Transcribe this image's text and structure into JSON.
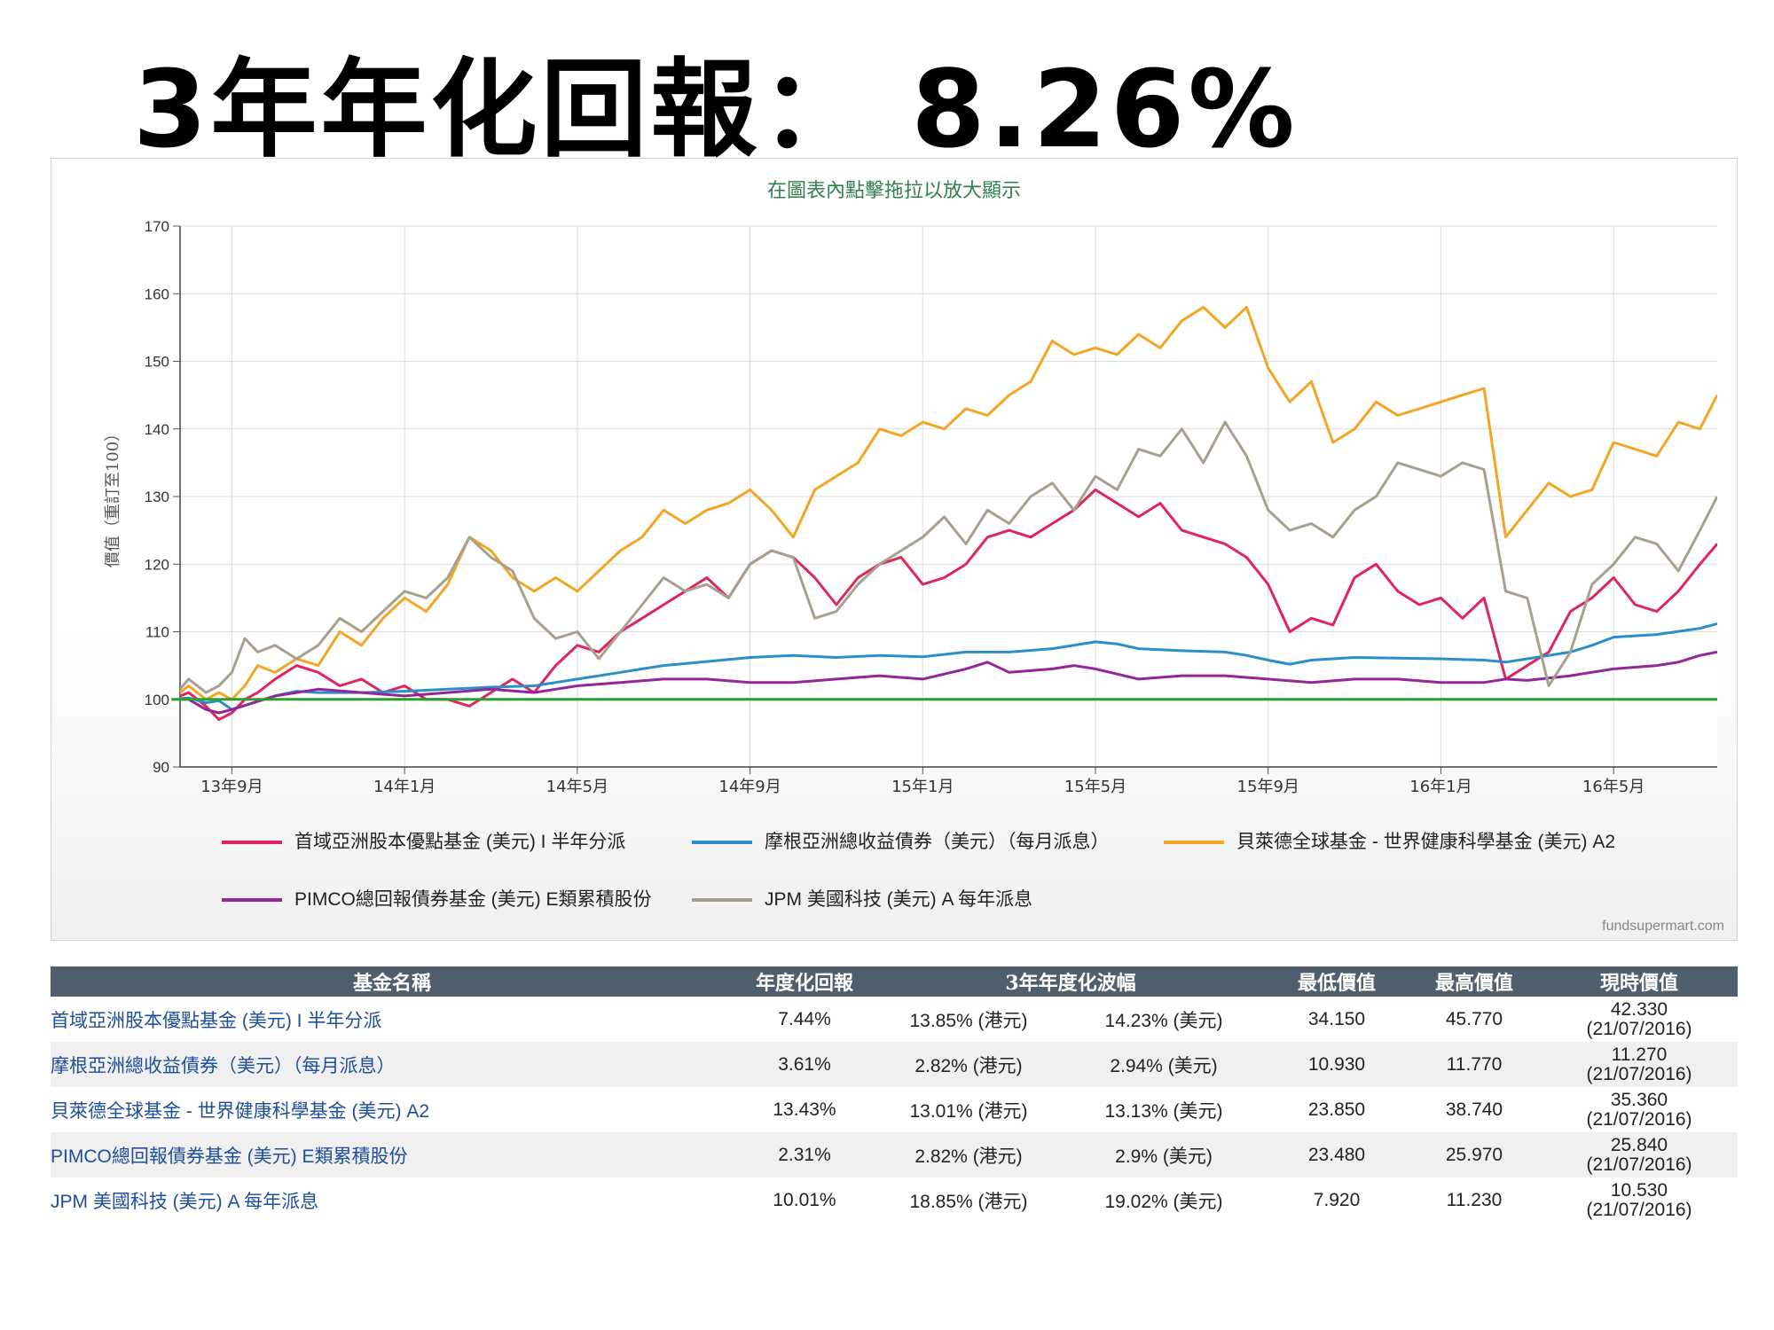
{
  "headline": "3年年化回報： 8.26%",
  "chart_hint": "在圖表內點擊拖拉以放大顯示",
  "credit": "fundsupermart.com",
  "watermark": "fundsupermart.com",
  "chart_data": {
    "type": "line",
    "ylabel": "價值（重訂至100）",
    "ylim": [
      90,
      170
    ],
    "yticks": [
      90,
      100,
      110,
      120,
      130,
      140,
      150,
      160,
      170
    ],
    "xlim": [
      -1.2,
      34.4
    ],
    "xticks": [
      {
        "label": "13年9月",
        "x": 0
      },
      {
        "label": "14年1月",
        "x": 4
      },
      {
        "label": "14年5月",
        "x": 8
      },
      {
        "label": "14年9月",
        "x": 12
      },
      {
        "label": "15年1月",
        "x": 16
      },
      {
        "label": "15年5月",
        "x": 20
      },
      {
        "label": "15年9月",
        "x": 24
      },
      {
        "label": "16年1月",
        "x": 28
      },
      {
        "label": "16年5月",
        "x": 32
      }
    ],
    "grid": true,
    "legend_position": "bottom",
    "baseline": {
      "value": 100,
      "color": "#2ca02c"
    },
    "series": [
      {
        "name": "首域亞洲股本優點基金 (美元) I 半年分派",
        "color": "#e0245e",
        "x": [
          -1.4,
          -1,
          -0.6,
          -0.3,
          0,
          0.3,
          0.6,
          1,
          1.5,
          2,
          2.5,
          3,
          3.5,
          4,
          4.5,
          5,
          5.5,
          6,
          6.5,
          7,
          7.5,
          8,
          8.5,
          9,
          9.5,
          10,
          10.5,
          11,
          11.5,
          12,
          12.5,
          13,
          13.5,
          14,
          14.5,
          15,
          15.5,
          16,
          16.5,
          17,
          17.5,
          18,
          18.5,
          19,
          19.5,
          20,
          20.5,
          21,
          21.5,
          22,
          22.5,
          23,
          23.5,
          24,
          24.5,
          25,
          25.5,
          26,
          26.5,
          27,
          27.5,
          28,
          28.5,
          29,
          29.5,
          30,
          30.5,
          31,
          31.5,
          32,
          32.5,
          33,
          33.5,
          34,
          34.4
        ],
        "y": [
          100,
          101,
          99,
          97,
          98,
          100,
          101,
          103,
          105,
          104,
          102,
          103,
          101,
          102,
          100,
          100,
          99,
          101,
          103,
          101,
          105,
          108,
          107,
          110,
          112,
          114,
          116,
          118,
          115,
          120,
          122,
          121,
          118,
          114,
          118,
          120,
          121,
          117,
          118,
          120,
          124,
          125,
          124,
          126,
          128,
          131,
          129,
          127,
          129,
          125,
          124,
          123,
          121,
          117,
          110,
          112,
          111,
          118,
          120,
          116,
          114,
          115,
          112,
          115,
          103,
          105,
          107,
          113,
          115,
          118,
          114,
          113,
          116,
          120,
          123
        ]
      },
      {
        "name": "摩根亞洲總收益債券（美元）（每月派息）",
        "color": "#2a8fc9",
        "x": [
          -1.4,
          -1,
          -0.6,
          -0.3,
          0,
          0.5,
          1,
          1.5,
          2,
          3,
          4,
          5,
          6,
          7,
          7.5,
          8,
          8.5,
          9,
          9.5,
          10,
          11,
          12,
          13,
          14,
          15,
          16,
          17,
          18,
          19,
          20,
          20.5,
          21,
          22,
          23,
          23.5,
          24,
          24.5,
          25,
          26,
          27,
          28,
          29,
          29.5,
          30,
          30.5,
          31,
          31.5,
          32,
          33,
          34,
          34.4
        ],
        "y": [
          100,
          100.2,
          99.5,
          99.8,
          98.5,
          99.5,
          100.5,
          101.2,
          101,
          101,
          101.2,
          101.5,
          101.8,
          102,
          102.5,
          103,
          103.5,
          104,
          104.5,
          105,
          105.6,
          106.2,
          106.5,
          106.2,
          106.5,
          106.3,
          107,
          107,
          107.5,
          108.5,
          108.2,
          107.5,
          107.2,
          107,
          106.5,
          105.8,
          105.2,
          105.8,
          106.2,
          106.1,
          106,
          105.8,
          105.5,
          106,
          106.5,
          107,
          108,
          109.2,
          109.6,
          110.5,
          111.2
        ]
      },
      {
        "name": "貝萊德全球基金 - 世界健康科學基金 (美元) A2",
        "color": "#f3a623",
        "x": [
          -1.4,
          -1,
          -0.6,
          -0.3,
          0,
          0.3,
          0.6,
          1,
          1.5,
          2,
          2.5,
          3,
          3.5,
          4,
          4.5,
          5,
          5.5,
          6,
          6.5,
          7,
          7.5,
          8,
          8.5,
          9,
          9.5,
          10,
          10.5,
          11,
          11.5,
          12,
          12.5,
          13,
          13.5,
          14,
          14.5,
          15,
          15.5,
          16,
          16.5,
          17,
          17.5,
          18,
          18.5,
          19,
          19.5,
          20,
          20.5,
          21,
          21.5,
          22,
          22.5,
          23,
          23.5,
          24,
          24.5,
          25,
          25.5,
          26,
          26.5,
          27,
          27.5,
          28,
          28.5,
          29,
          29.5,
          30,
          30.5,
          31,
          31.5,
          32,
          32.5,
          33,
          33.5,
          34,
          34.4
        ],
        "y": [
          100,
          102,
          100,
          101,
          100,
          102,
          105,
          104,
          106,
          105,
          110,
          108,
          112,
          115,
          113,
          117,
          124,
          122,
          118,
          116,
          118,
          116,
          119,
          122,
          124,
          128,
          126,
          128,
          129,
          131,
          128,
          124,
          131,
          133,
          135,
          140,
          139,
          141,
          140,
          143,
          142,
          145,
          147,
          153,
          151,
          152,
          151,
          154,
          152,
          156,
          158,
          155,
          158,
          149,
          144,
          147,
          138,
          140,
          144,
          142,
          143,
          144,
          145,
          146,
          124,
          128,
          132,
          130,
          131,
          138,
          137,
          136,
          141,
          140,
          145
        ]
      },
      {
        "name": "PIMCO總回報債券基金 (美元) E類累積股份",
        "color": "#93269a",
        "x": [
          -1.4,
          -1,
          -0.6,
          -0.3,
          0,
          0.5,
          1,
          1.5,
          2,
          3,
          4,
          5,
          6,
          7,
          7.5,
          8,
          9,
          10,
          11,
          12,
          13,
          14,
          15,
          16,
          17,
          17.5,
          18,
          19,
          19.5,
          20,
          21,
          22,
          23,
          24,
          25,
          26,
          27,
          28,
          29,
          29.5,
          30,
          31,
          32,
          33,
          33.5,
          34,
          34.4
        ],
        "y": [
          100,
          100,
          98.5,
          98,
          98.5,
          99.5,
          100.5,
          101,
          101.5,
          101,
          100.5,
          101,
          101.5,
          101,
          101.5,
          102,
          102.5,
          103,
          103,
          102.5,
          102.5,
          103,
          103.5,
          103,
          104.5,
          105.5,
          104,
          104.5,
          105,
          104.5,
          103,
          103.5,
          103.5,
          103,
          102.5,
          103,
          103,
          102.5,
          102.5,
          103,
          102.8,
          103.5,
          104.5,
          105,
          105.5,
          106.5,
          107
        ]
      },
      {
        "name": "JPM 美國科技 (美元) A 每年派息",
        "color": "#a8a08f",
        "x": [
          -1.4,
          -1,
          -0.6,
          -0.3,
          0,
          0.3,
          0.6,
          1,
          1.5,
          2,
          2.5,
          3,
          3.5,
          4,
          4.5,
          5,
          5.5,
          6,
          6.5,
          7,
          7.5,
          8,
          8.5,
          9,
          9.5,
          10,
          10.5,
          11,
          11.5,
          12,
          12.5,
          13,
          13.5,
          14,
          14.5,
          15,
          15.5,
          16,
          16.5,
          17,
          17.5,
          18,
          18.5,
          19,
          19.5,
          20,
          20.5,
          21,
          21.5,
          22,
          22.5,
          23,
          23.5,
          24,
          24.5,
          25,
          25.5,
          26,
          26.5,
          27,
          27.5,
          28,
          28.5,
          29,
          29.5,
          30,
          30.5,
          31,
          31.5,
          32,
          32.5,
          33,
          33.5,
          34,
          34.4
        ],
        "y": [
          100,
          103,
          101,
          102,
          104,
          109,
          107,
          108,
          106,
          108,
          112,
          110,
          113,
          116,
          115,
          118,
          124,
          121,
          119,
          112,
          109,
          110,
          106,
          110,
          114,
          118,
          116,
          117,
          115,
          120,
          122,
          121,
          112,
          113,
          117,
          120,
          122,
          124,
          127,
          123,
          128,
          126,
          130,
          132,
          128,
          133,
          131,
          137,
          136,
          140,
          135,
          141,
          136,
          128,
          125,
          126,
          124,
          128,
          130,
          135,
          134,
          133,
          135,
          134,
          116,
          115,
          102,
          107,
          117,
          120,
          124,
          123,
          119,
          125,
          130
        ]
      }
    ]
  },
  "table": {
    "headers": {
      "name": "基金名稱",
      "annual_return": "年度化回報",
      "volatility": "3年年度化波幅",
      "min": "最低價值",
      "max": "最高價值",
      "current": "現時價值"
    },
    "rows": [
      {
        "name": "首域亞洲股本優點基金 (美元) I 半年分派",
        "annual_return": "7.44%",
        "vol_hkd": "13.85% (港元)",
        "vol_usd": "14.23% (美元)",
        "min": "34.150",
        "max": "45.770",
        "current": "42.330",
        "date": "(21/07/2016)"
      },
      {
        "name": "摩根亞洲總收益債券（美元）（每月派息）",
        "annual_return": "3.61%",
        "vol_hkd": "2.82% (港元)",
        "vol_usd": "2.94% (美元)",
        "min": "10.930",
        "max": "11.770",
        "current": "11.270",
        "date": "(21/07/2016)"
      },
      {
        "name": "貝萊德全球基金 - 世界健康科學基金 (美元) A2",
        "annual_return": "13.43%",
        "vol_hkd": "13.01% (港元)",
        "vol_usd": "13.13% (美元)",
        "min": "23.850",
        "max": "38.740",
        "current": "35.360",
        "date": "(21/07/2016)"
      },
      {
        "name": "PIMCO總回報債券基金 (美元) E類累積股份",
        "annual_return": "2.31%",
        "vol_hkd": "2.82% (港元)",
        "vol_usd": "2.9% (美元)",
        "min": "23.480",
        "max": "25.970",
        "current": "25.840",
        "date": "(21/07/2016)"
      },
      {
        "name": "JPM 美國科技 (美元) A 每年派息",
        "annual_return": "10.01%",
        "vol_hkd": "18.85% (港元)",
        "vol_usd": "19.02% (美元)",
        "min": "7.920",
        "max": "11.230",
        "current": "10.530",
        "date": "(21/07/2016)"
      }
    ]
  }
}
